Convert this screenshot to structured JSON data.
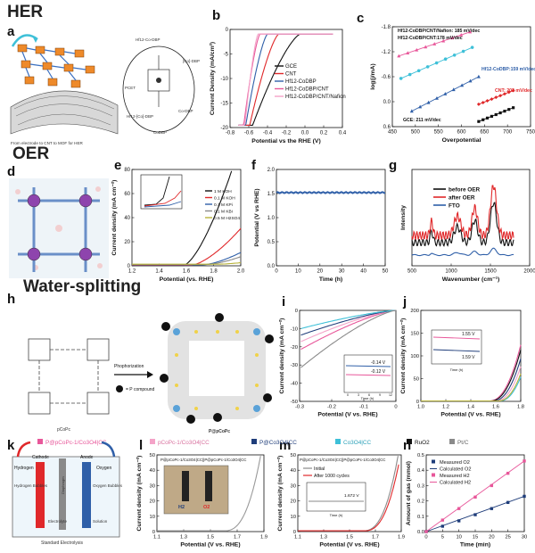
{
  "sections": {
    "her": "HER",
    "oer": "OER",
    "water": "Water-splitting"
  },
  "panel_letters": [
    "a",
    "b",
    "c",
    "d",
    "e",
    "f",
    "g",
    "h",
    "i",
    "j",
    "k",
    "l",
    "m",
    "n"
  ],
  "colors": {
    "black": "#111111",
    "red": "#e0282a",
    "blue": "#2f5fa8",
    "pink": "#e8579a",
    "lightpink": "#f4a3c8",
    "cyan": "#3ec0d8",
    "olive": "#b8b33a",
    "navy": "#1f3d7a",
    "gray": "#8a8a8a",
    "orange": "#f08a24"
  },
  "panel_a": {
    "caption": "From electrode to CNT to MOF for HER",
    "labels": [
      "Hf12-Co-DBP",
      "PCET",
      "[Co]-DBP",
      "Co-DBP",
      "Hf12-[Co]-DBP",
      "CoDBP"
    ]
  },
  "panel_h": {
    "mol1": "pCoPc",
    "mol2": "P@pCoPc",
    "arrow": "Phophorization",
    "legend": "= P compound"
  },
  "panel_k": {
    "cathode": "Cathode",
    "anode": "Anode",
    "hydrogen": "Hydrogen",
    "oxygen": "Oxygen",
    "hbub": "Hydrogen Bubbles",
    "obub": "Oxygen Bubbles",
    "diaphragm": "Diaphragm",
    "electrolyte": "Electrolyte",
    "solution": "Solution",
    "caption": "Standard Electrolysis"
  },
  "legend_bottom": [
    "P@pCoPc-1/Co3O4|CC",
    "pCoPc-1/Co3O4|CC",
    "P@Co3O4|CC",
    "Co3O4|CC",
    "RuO2",
    "Pt/C"
  ],
  "chart_data": [
    {
      "id": "b",
      "type": "line",
      "xlabel": "Potential vs the RHE (V)",
      "ylabel": "Current Density (mA/cm²)",
      "xlim": [
        -0.8,
        0.4
      ],
      "ylim": [
        -20,
        1
      ],
      "xticks": [
        "-0.8",
        "-0.6",
        "-0.4",
        "-0.2",
        "0.0",
        "0.2",
        "0.4"
      ],
      "yticks": [
        "0",
        "-5",
        "-10",
        "-15",
        "-20"
      ],
      "series": [
        {
          "name": "GCE",
          "onset": -0.05,
          "k": 2.0
        },
        {
          "name": "CNT",
          "onset": -0.28,
          "k": 4.0
        },
        {
          "name": "Hf12-CoDBP",
          "onset": -0.4,
          "k": 6.0
        },
        {
          "name": "Hf12-CoDBP/CNT",
          "onset": -0.48,
          "k": 9.0
        },
        {
          "name": "Hf12-CoDBP/CNT/Nafion",
          "onset": -0.5,
          "k": 12.0
        }
      ]
    },
    {
      "id": "c",
      "type": "line",
      "xlabel": "Overpotential",
      "ylabel": "log(j/mA)",
      "xlim": [
        440,
        760
      ],
      "ylim": [
        -2.0,
        0.9
      ],
      "xticks": [
        "450",
        "500",
        "550",
        "600",
        "650",
        "700",
        "750"
      ],
      "yticks": [
        "0.6",
        "0.0",
        "-0.6",
        "-1.2",
        "-1.8"
      ],
      "series": [
        {
          "name": "Hf12-CoDBP/CNT/Nafion: 185 mV/dec",
          "x": [
            455,
            620
          ],
          "y": [
            0.05,
            0.75
          ]
        },
        {
          "name": "Hf12-CoDBP/CNT:178 mV/dec",
          "x": [
            460,
            625
          ],
          "y": [
            -0.6,
            0.3
          ]
        },
        {
          "name": "Hf12-CoDBP:159 mV/dec",
          "x": [
            485,
            640
          ],
          "y": [
            -1.55,
            -0.55
          ]
        },
        {
          "name": "CNT: 202 mV/dec",
          "x": [
            640,
            720
          ],
          "y": [
            -1.35,
            -0.95
          ]
        },
        {
          "name": "GCE: 211 mV/dec",
          "x": [
            640,
            720
          ],
          "y": [
            -1.85,
            -1.45
          ]
        }
      ]
    },
    {
      "id": "e",
      "type": "line",
      "xlabel": "Potential (vs. RHE)",
      "ylabel": "Current density (mA cm⁻²)",
      "xlim": [
        1.1,
        2.05
      ],
      "ylim": [
        0,
        80
      ],
      "xticks": [
        "1.2",
        "1.4",
        "1.6",
        "1.8",
        "2.0"
      ],
      "yticks": [
        "0",
        "20",
        "40",
        "60",
        "80"
      ],
      "series": [
        {
          "name": "1 M KOH",
          "onset": 1.55,
          "k": 160
        },
        {
          "name": "0.1 M KOH",
          "onset": 1.62,
          "k": 60
        },
        {
          "name": "0.1 M KPi",
          "onset": 1.72,
          "k": 30
        },
        {
          "name": "0.1 M KBi",
          "onset": 1.75,
          "k": 22
        },
        {
          "name": "0.5 M H2SO4",
          "onset": 1.85,
          "k": 8
        }
      ]
    },
    {
      "id": "f",
      "type": "line",
      "xlabel": "Time (h)",
      "ylabel": "Potential (V vs RHE)",
      "xlim": [
        0,
        50
      ],
      "ylim": [
        0,
        2.0
      ],
      "xticks": [
        "0",
        "10",
        "20",
        "30",
        "40",
        "50"
      ],
      "yticks": [
        "0.0",
        "0.5",
        "1.0",
        "1.5",
        "2.0"
      ],
      "series": [
        {
          "name": "stability",
          "value": 1.52
        }
      ]
    },
    {
      "id": "g",
      "type": "line",
      "xlabel": "Wavenumber (cm⁻¹)",
      "ylabel": "Intensity",
      "xlim": [
        500,
        2000
      ],
      "xticks": [
        "500",
        "1000",
        "1500",
        "2000"
      ],
      "series": [
        {
          "name": "before OER"
        },
        {
          "name": "after OER"
        },
        {
          "name": "FTO"
        }
      ]
    },
    {
      "id": "i",
      "type": "line",
      "xlabel": "Potential (V vs. RHE)",
      "ylabel": "Current density (mA cm⁻²)",
      "xlim": [
        -0.35,
        0.0
      ],
      "ylim": [
        -50,
        0
      ],
      "xticks": [
        "-0.3",
        "-0.2",
        "-0.1",
        "0"
      ],
      "yticks": [
        "0",
        "-10",
        "-20",
        "-30",
        "-40",
        "-50"
      ],
      "inset": {
        "xlabel": "Time (h)",
        "ylabel": "Current density (mA cm⁻²)",
        "xticks": [
          "0",
          "3",
          "6",
          "9",
          "12"
        ],
        "yticks": [
          "0",
          "-2",
          "-4",
          "-6",
          "-8",
          "-10",
          "-12"
        ],
        "labels": [
          "-0.14 V",
          "-0.12 V"
        ]
      }
    },
    {
      "id": "j",
      "type": "line",
      "xlabel": "Potential (V vs. RHE)",
      "ylabel": "Current density (mA cm⁻²)",
      "xlim": [
        1.0,
        1.8
      ],
      "ylim": [
        0,
        200
      ],
      "xticks": [
        "1.0",
        "1.2",
        "1.4",
        "1.6",
        "1.8"
      ],
      "yticks": [
        "0",
        "50",
        "100",
        "150",
        "200"
      ],
      "inset": {
        "xlabel": "Time (h)",
        "ylabel": "Current density (mA cm⁻²)",
        "xticks": [
          "0",
          "3",
          "6",
          "9",
          "12"
        ],
        "yticks": [
          "4",
          "6",
          "8",
          "10",
          "12"
        ],
        "labels": [
          "1.55 V",
          "1.59 V"
        ]
      }
    },
    {
      "id": "l",
      "type": "line",
      "xlabel": "Potential (V vs. RHE)",
      "ylabel": "Current density (mA cm⁻²)",
      "xlim": [
        1.1,
        1.9
      ],
      "ylim": [
        0,
        50
      ],
      "xticks": [
        "1.1",
        "1.3",
        "1.5",
        "1.7",
        "1.9"
      ],
      "yticks": [
        "0",
        "10",
        "20",
        "30",
        "40",
        "50"
      ],
      "label": "P@pCoPc-1/Co3O4|CC||P@pCoPc-1/Co3O4|CC",
      "photo_labels": [
        "H2",
        "O2"
      ]
    },
    {
      "id": "m",
      "type": "line",
      "xlabel": "Potential (V vs. RHE)",
      "ylabel": "Current density (mA cm⁻²)",
      "xlim": [
        1.1,
        1.9
      ],
      "ylim": [
        0,
        50
      ],
      "xticks": [
        "1.1",
        "1.3",
        "1.5",
        "1.7",
        "1.9"
      ],
      "yticks": [
        "0",
        "10",
        "20",
        "30",
        "40",
        "50"
      ],
      "label": "P@pCoPc-1/Co3O4|CC||P@pCoPc-1/Co3O4|CC",
      "series": [
        {
          "name": "Initial"
        },
        {
          "name": "After 1000 cycles"
        }
      ],
      "inset": {
        "xlabel": "Time (h)",
        "ylabel": "Current density (mA cm⁻²)",
        "xticks": [
          "0",
          "3",
          "6",
          "9",
          "12"
        ],
        "yticks": [
          "0",
          "5",
          "10",
          "15",
          "20"
        ],
        "labels": [
          "1.672 V"
        ]
      }
    },
    {
      "id": "n",
      "type": "line",
      "xlabel": "Time (min)",
      "ylabel": "Amount of gas (mmol)",
      "xlim": [
        0,
        30
      ],
      "ylim": [
        0,
        0.5
      ],
      "xticks": [
        "0",
        "5",
        "10",
        "15",
        "20",
        "25",
        "30"
      ],
      "yticks": [
        "0.0",
        "0.1",
        "0.2",
        "0.3",
        "0.4",
        "0.5"
      ],
      "series": [
        {
          "name": "Measured O2",
          "x": [
            0,
            5,
            10,
            15,
            20,
            25,
            30
          ],
          "y": [
            0.0,
            0.035,
            0.07,
            0.11,
            0.15,
            0.19,
            0.23
          ]
        },
        {
          "name": "Calculated O2",
          "x": [
            0,
            30
          ],
          "y": [
            0.0,
            0.23
          ]
        },
        {
          "name": "Measured H2",
          "x": [
            0,
            5,
            10,
            15,
            20,
            25,
            30
          ],
          "y": [
            0.0,
            0.075,
            0.15,
            0.225,
            0.3,
            0.38,
            0.46
          ]
        },
        {
          "name": "Calculated H2",
          "x": [
            0,
            30
          ],
          "y": [
            0.0,
            0.46
          ]
        }
      ]
    }
  ]
}
